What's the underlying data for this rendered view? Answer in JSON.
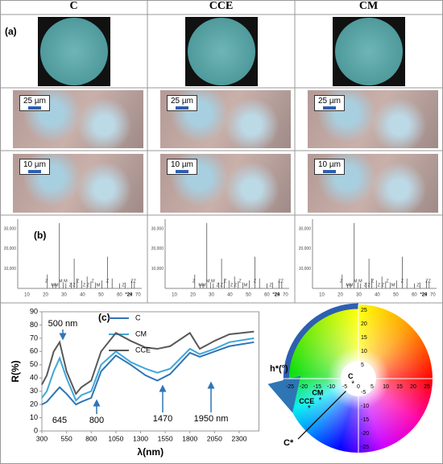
{
  "header": {
    "columns": [
      "C",
      "CCE",
      "CM"
    ]
  },
  "panel_labels": [
    "(a)",
    "(b)",
    "(c)"
  ],
  "micrographs": {
    "scale_bars": [
      "25 µm",
      "10 µm"
    ]
  },
  "xrd": {
    "xlim": [
      5,
      72
    ],
    "ylim": [
      0,
      35000
    ],
    "xticks": [
      10,
      20,
      30,
      40,
      50,
      60,
      70
    ],
    "yticks": [
      {
        "value": 10000,
        "label": "10,000"
      },
      {
        "value": 20000,
        "label": "20,000"
      },
      {
        "value": 30000,
        "label": "30,000"
      }
    ],
    "x_label": "°2θ",
    "peaks": {
      "x": [
        21,
        24,
        25.5,
        27.5,
        29.5,
        31,
        34,
        35.5,
        37,
        39.5,
        42.5,
        44.5,
        47,
        50.5,
        53.5,
        56,
        60,
        63,
        66.5,
        68
      ],
      "y": [
        7000,
        2000,
        2500,
        33000,
        3000,
        2500,
        3000,
        15000,
        5000,
        4000,
        6000,
        3500,
        3000,
        4000,
        16000,
        5000,
        2500,
        3000,
        4000,
        3000
      ]
    },
    "peak_labels": {
      "x": [
        20.5,
        25,
        29.5,
        34.5,
        37.5,
        42,
        45.5,
        48.5,
        53.5,
        62,
        67.5
      ],
      "labels": [
        "Z",
        "MM",
        "M M",
        "Z Z",
        "Z",
        "Z Z",
        "Z",
        "M",
        "Z",
        "Z",
        "ZZ"
      ]
    }
  },
  "chart_data": {
    "type": "line",
    "x_label": "λ(nm)",
    "y_label": "R(%)",
    "x": [
      300,
      350,
      420,
      480,
      550,
      645,
      700,
      800,
      900,
      1050,
      1200,
      1350,
      1470,
      1600,
      1800,
      1900,
      2050,
      2200,
      2450
    ],
    "xlim": [
      300,
      2500
    ],
    "xticks": [
      300,
      550,
      800,
      1050,
      1300,
      1550,
      1800,
      2050,
      2300
    ],
    "ylim": [
      0,
      90
    ],
    "yticks": [
      0,
      10,
      20,
      30,
      40,
      50,
      60,
      70,
      80,
      90
    ],
    "series": [
      {
        "name": "C",
        "color": "#2e75b6",
        "values": [
          20,
          22,
          28,
          33,
          28,
          20,
          22,
          25,
          45,
          57,
          50,
          42,
          38,
          43,
          59,
          56,
          60,
          64,
          67
        ]
      },
      {
        "name": "CM",
        "color": "#41a6d9",
        "values": [
          25,
          30,
          45,
          55,
          40,
          23,
          27,
          30,
          50,
          60,
          52,
          47,
          44,
          47,
          62,
          58,
          62,
          67,
          70
        ]
      },
      {
        "name": "CCE",
        "color": "#595959",
        "values": [
          35,
          42,
          60,
          67,
          45,
          28,
          33,
          38,
          60,
          74,
          68,
          63,
          62,
          64,
          74,
          62,
          68,
          73,
          75
        ]
      }
    ],
    "annotations": [
      "500 nm",
      "645",
      "800",
      "1470",
      "1950 nm"
    ]
  },
  "color_wheel": {
    "lim": [
      -25,
      25
    ],
    "ticks": [
      -25,
      -20,
      -15,
      -10,
      -5,
      0,
      5,
      10,
      15,
      20,
      25
    ],
    "hue_label": "h*(°)",
    "chroma_label": "C*",
    "points": {
      "names": [
        "C",
        "CCE",
        "CM"
      ],
      "a": [
        -2,
        -18,
        -14
      ],
      "b": [
        -2,
        -11,
        -8
      ]
    }
  }
}
